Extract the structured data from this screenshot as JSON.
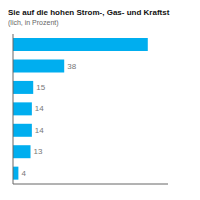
{
  "chart_data": {
    "type": "bar",
    "orientation": "horizontal",
    "title": "Sie auf die hohen Strom-, Gas- und Kraftst",
    "subtitle": "(lich, in Prozent)",
    "categories": [
      null,
      null,
      null,
      null,
      null,
      null,
      null
    ],
    "values": [
      100,
      38,
      15,
      14,
      14,
      13,
      4
    ],
    "value_labels": [
      null,
      "38",
      "15",
      "14",
      "14",
      "13",
      "4"
    ],
    "data_labels": true,
    "color": "#00aeef",
    "xlim": [
      0,
      115
    ],
    "tick_labels": false,
    "grid": false
  }
}
